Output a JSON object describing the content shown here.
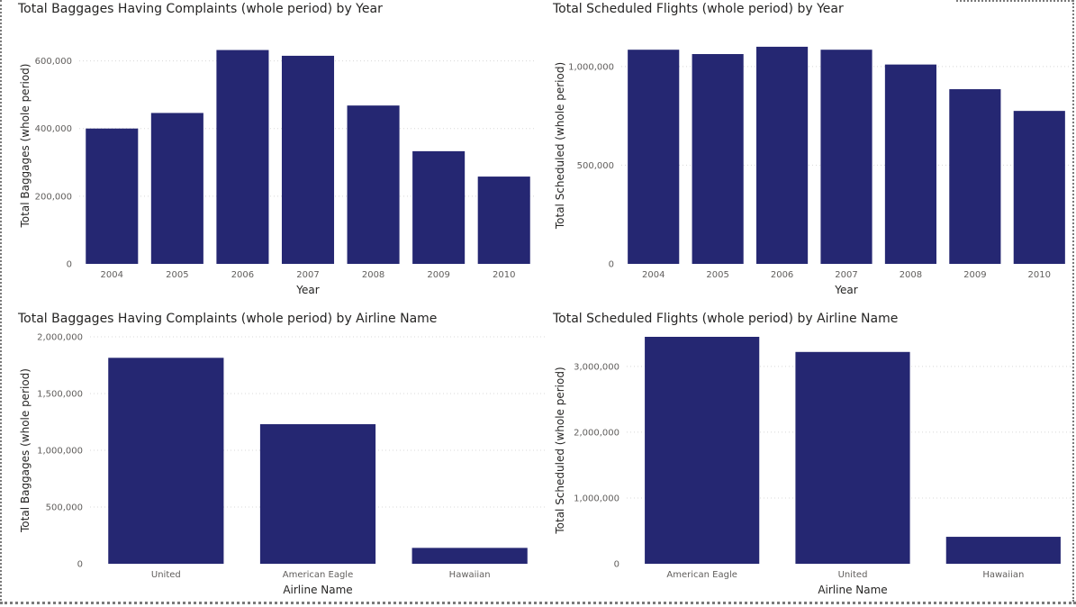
{
  "bar_color": "#252772",
  "chart_data": [
    {
      "id": "baggages-by-year",
      "type": "bar",
      "title": "Total Baggages Having Complaints (whole period) by Year",
      "xlabel": "Year",
      "ylabel": "Total Baggages (whole period)",
      "categories": [
        "2004",
        "2005",
        "2006",
        "2007",
        "2008",
        "2009",
        "2010"
      ],
      "values": [
        400000,
        446000,
        632000,
        615000,
        468000,
        333000,
        258000
      ],
      "ylim": [
        0,
        700000
      ],
      "yticks": [
        0,
        200000,
        400000,
        600000
      ],
      "ytick_labels": [
        "0",
        "200,000",
        "400,000",
        "600,000"
      ],
      "grid": true
    },
    {
      "id": "flights-by-year",
      "type": "bar",
      "title": "Total Scheduled Flights (whole period) by Year",
      "xlabel": "Year",
      "ylabel": "Total Scheduled (whole period)",
      "categories": [
        "2004",
        "2005",
        "2006",
        "2007",
        "2008",
        "2009",
        "2010"
      ],
      "values": [
        1085000,
        1063000,
        1100000,
        1085000,
        1010000,
        885000,
        775000
      ],
      "ylim": [
        0,
        1200000
      ],
      "yticks": [
        0,
        500000,
        1000000
      ],
      "ytick_labels": [
        "0",
        "500,000",
        "1,000,000"
      ],
      "grid": true
    },
    {
      "id": "baggages-by-airline",
      "type": "bar",
      "title": "Total Baggages Having Complaints (whole period) by Airline Name",
      "xlabel": "Airline Name",
      "ylabel": "Total Baggages (whole period)",
      "categories": [
        "United",
        "American Eagle",
        "Hawaiian"
      ],
      "values": [
        1815000,
        1230000,
        140000
      ],
      "ylim": [
        0,
        2000000
      ],
      "yticks": [
        0,
        500000,
        1000000,
        1500000,
        2000000
      ],
      "ytick_labels": [
        "0",
        "500,000",
        "1,000,000",
        "1,500,000",
        "2,000,000"
      ],
      "grid": true
    },
    {
      "id": "flights-by-airline",
      "type": "bar",
      "title": "Total Scheduled Flights (whole period) by Airline Name",
      "xlabel": "Airline Name",
      "ylabel": "Total Scheduled (whole period)",
      "categories": [
        "American Eagle",
        "United",
        "Hawaiian"
      ],
      "values": [
        3450000,
        3220000,
        410000
      ],
      "ylim": [
        0,
        3450000
      ],
      "yticks": [
        0,
        1000000,
        2000000,
        3000000
      ],
      "ytick_labels": [
        "0",
        "1,000,000",
        "2,000,000",
        "3,000,000"
      ],
      "grid": true
    }
  ]
}
